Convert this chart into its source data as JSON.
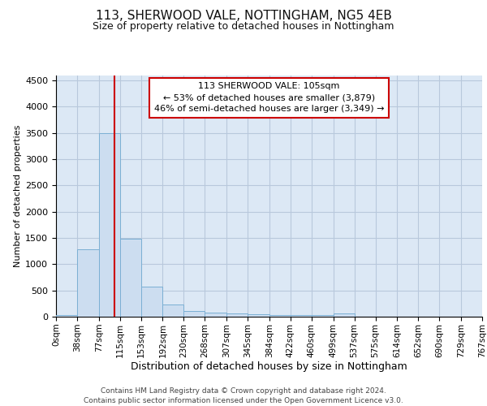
{
  "title1": "113, SHERWOOD VALE, NOTTINGHAM, NG5 4EB",
  "title2": "Size of property relative to detached houses in Nottingham",
  "xlabel": "Distribution of detached houses by size in Nottingham",
  "ylabel": "Number of detached properties",
  "bin_edges": [
    0,
    38,
    77,
    115,
    153,
    192,
    230,
    268,
    307,
    345,
    384,
    422,
    460,
    499,
    537,
    575,
    614,
    652,
    690,
    729,
    767
  ],
  "bar_heights": [
    30,
    1280,
    3500,
    1480,
    575,
    235,
    115,
    80,
    55,
    40,
    35,
    35,
    30,
    55,
    0,
    0,
    0,
    0,
    0,
    0
  ],
  "bar_color": "#ccddf0",
  "bar_edgecolor": "#7bafd4",
  "bar_linewidth": 0.7,
  "grid_color": "#b8c8dc",
  "background_color": "#dce8f5",
  "property_size": 105,
  "red_line_color": "#cc0000",
  "annotation_line1": "113 SHERWOOD VALE: 105sqm",
  "annotation_line2": "← 53% of detached houses are smaller (3,879)",
  "annotation_line3": "46% of semi-detached houses are larger (3,349) →",
  "annotation_box_color": "#cc0000",
  "ylim": [
    0,
    4600
  ],
  "yticks": [
    0,
    500,
    1000,
    1500,
    2000,
    2500,
    3000,
    3500,
    4000,
    4500
  ],
  "footer_line1": "Contains HM Land Registry data © Crown copyright and database right 2024.",
  "footer_line2": "Contains public sector information licensed under the Open Government Licence v3.0.",
  "tick_labels": [
    "0sqm",
    "38sqm",
    "77sqm",
    "115sqm",
    "153sqm",
    "192sqm",
    "230sqm",
    "268sqm",
    "307sqm",
    "345sqm",
    "384sqm",
    "422sqm",
    "460sqm",
    "499sqm",
    "537sqm",
    "575sqm",
    "614sqm",
    "652sqm",
    "690sqm",
    "729sqm",
    "767sqm"
  ],
  "title1_fontsize": 11,
  "title2_fontsize": 9,
  "ylabel_fontsize": 8,
  "xlabel_fontsize": 9,
  "ytick_fontsize": 8,
  "xtick_fontsize": 7.5,
  "footer_fontsize": 6.5
}
